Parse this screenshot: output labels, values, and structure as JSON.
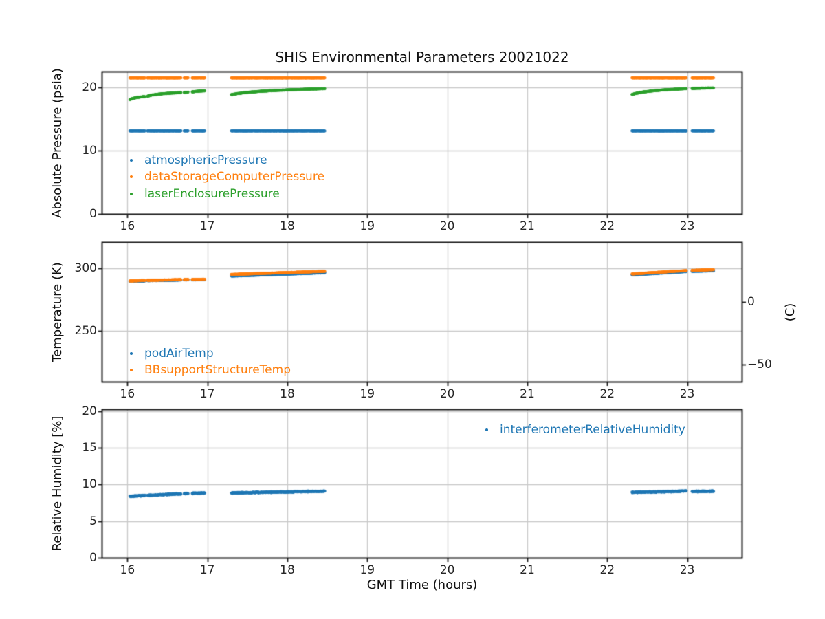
{
  "figure": {
    "title": "SHIS Environmental Parameters 20021022",
    "xlabel": "GMT Time (hours)"
  },
  "x_axis": {
    "ticks": [
      16,
      17,
      18,
      19,
      20,
      21,
      22,
      23
    ],
    "lim": [
      15.6875,
      23.6825
    ]
  },
  "time_chunks": [
    [
      16.03,
      16.22
    ],
    [
      16.25,
      16.67
    ],
    [
      16.71,
      16.76
    ],
    [
      16.81,
      16.97
    ],
    [
      17.3,
      18.47
    ],
    [
      22.31,
      22.99
    ],
    [
      23.06,
      23.33
    ]
  ],
  "chart_data": [
    {
      "type": "scatter",
      "ylabel": "Absolute Pressure (psia)",
      "ylim": [
        0,
        22.4
      ],
      "yticks": [
        0,
        10,
        20
      ],
      "legend_position": "lower left",
      "series": [
        {
          "name": "atmosphericPressure",
          "color": "#1f77b4",
          "curve": "linear",
          "noise": 0.01,
          "values": [
            [
              13.12,
              13.12
            ],
            [
              13.12,
              13.12
            ],
            [
              13.12,
              13.12
            ],
            [
              13.12,
              13.12
            ],
            [
              13.12,
              13.12
            ],
            [
              13.12,
              13.12
            ],
            [
              13.12,
              13.12
            ]
          ]
        },
        {
          "name": "dataStorageComputerPressure",
          "color": "#ff7f0e",
          "curve": "linear",
          "noise": 0.01,
          "values": [
            [
              21.5,
              21.5
            ],
            [
              21.5,
              21.5
            ],
            [
              21.5,
              21.5
            ],
            [
              21.5,
              21.5
            ],
            [
              21.5,
              21.5
            ],
            [
              21.5,
              21.5
            ],
            [
              21.5,
              21.5
            ]
          ]
        },
        {
          "name": "laserEnclosurePressure",
          "color": "#2ca02c",
          "curve": "log",
          "noise": 0.015,
          "values": [
            [
              18.05,
              18.55
            ],
            [
              18.6,
              19.18
            ],
            [
              19.2,
              19.24
            ],
            [
              19.27,
              19.45
            ],
            [
              18.85,
              19.8
            ],
            [
              18.87,
              19.8
            ],
            [
              19.82,
              19.92
            ]
          ]
        }
      ]
    },
    {
      "type": "scatter",
      "ylabel": "Temperature (K)",
      "ylim": [
        209.5,
        320.5
      ],
      "yticks": [
        250,
        300
      ],
      "right_axis": {
        "label": "(C)",
        "ticks": [
          {
            "label": "0",
            "kelvin": 273.15
          },
          {
            "label": "−50",
            "kelvin": 223.15
          }
        ]
      },
      "legend_position": "lower left",
      "series": [
        {
          "name": "podAirTemp",
          "color": "#1f77b4",
          "curve": "linear",
          "noise": 0.08,
          "values": [
            [
              289.7,
              290.1
            ],
            [
              290.15,
              290.75
            ],
            [
              290.8,
              290.85
            ],
            [
              290.85,
              291.05
            ],
            [
              293.9,
              296.5
            ],
            [
              294.8,
              297.5
            ],
            [
              297.7,
              298.1
            ]
          ]
        },
        {
          "name": "BBsupportStructureTemp",
          "color": "#ff7f0e",
          "curve": "linear",
          "noise": 0.08,
          "values": [
            [
              290.0,
              290.4
            ],
            [
              290.45,
              291.05
            ],
            [
              291.1,
              291.15
            ],
            [
              291.15,
              291.35
            ],
            [
              295.2,
              297.7
            ],
            [
              295.6,
              298.3
            ],
            [
              298.5,
              299.0
            ]
          ]
        }
      ]
    },
    {
      "type": "scatter",
      "ylabel": "Relative Humidity [%]",
      "ylim": [
        0,
        20.15
      ],
      "yticks": [
        0,
        5,
        10,
        15,
        20
      ],
      "legend_position": "upper right",
      "series": [
        {
          "name": "interferometerRelativeHumidity",
          "color": "#1f77b4",
          "curve": "linear",
          "noise": 0.045,
          "values": [
            [
              8.38,
              8.48
            ],
            [
              8.5,
              8.72
            ],
            [
              8.74,
              8.78
            ],
            [
              8.78,
              8.85
            ],
            [
              8.85,
              9.07
            ],
            [
              8.9,
              9.1
            ],
            [
              9.02,
              9.08
            ]
          ]
        }
      ]
    }
  ],
  "style": {
    "grid_color": "#c8c8c8",
    "spine_color": "#1b1b1b",
    "palette": {
      "blue": "#1f77b4",
      "orange": "#ff7f0e",
      "green": "#2ca02c"
    }
  }
}
